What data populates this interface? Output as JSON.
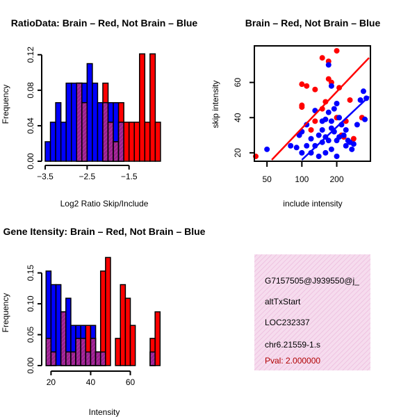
{
  "colors": {
    "red": "#ff0000",
    "blue": "#0000ff",
    "purple": "#9a2090",
    "overlay": "#f6dcee",
    "hatch": "#ecbadc",
    "pval": "#b00000"
  },
  "chart_data": [
    {
      "id": "ratio",
      "type": "bar",
      "title": "RatioData: Brain – Red, Not Brain – Blue",
      "xlabel": "Log2 Ratio Skip/Include",
      "ylabel": "Frequency",
      "xlim": [
        -3.55,
        -0.55
      ],
      "ylim": [
        0,
        0.13
      ],
      "xticks": [
        -3.5,
        -2.5,
        -1.5
      ],
      "xtick_labels": [
        "−3.5",
        "−2.5",
        "−1.5"
      ],
      "yticks": [
        0,
        0.04,
        0.08,
        0.12
      ],
      "ytick_labels": [
        "0.00",
        "0.04",
        "0.08",
        "0.12"
      ],
      "bin_width": 0.125,
      "bin_starts": [
        -3.5,
        -3.375,
        -3.25,
        -3.125,
        -3.0,
        -2.875,
        -2.75,
        -2.625,
        -2.5,
        -2.375,
        -2.25,
        -2.125,
        -2.0,
        -1.875,
        -1.75,
        -1.625,
        -1.5,
        -1.375,
        -1.25,
        -1.125,
        -1.0,
        -0.875
      ],
      "series": [
        {
          "name": "Not Brain",
          "color": "blue",
          "values": [
            0.022,
            0.044,
            0.066,
            0.044,
            0.088,
            0.088,
            0.088,
            0.088,
            0.11,
            0.088,
            0.066,
            0.066,
            0.066,
            0.066,
            0.044,
            0,
            0,
            0,
            0,
            0,
            0,
            0
          ]
        },
        {
          "name": "Brain",
          "color": "red",
          "values": [
            0,
            0,
            0,
            0,
            0,
            0,
            0.088,
            0.066,
            0,
            0,
            0,
            0.088,
            0.044,
            0.022,
            0.066,
            0.044,
            0.044,
            0.044,
            0.121,
            0.044,
            0.121,
            0.044
          ]
        }
      ]
    },
    {
      "id": "scatter",
      "type": "scatter",
      "title": "Brain – Red, Not Brain – Blue",
      "xlabel": "include intensity",
      "ylabel": "skip intensity",
      "log_x": true,
      "xlim": [
        40,
        380
      ],
      "ylim": [
        16,
        80
      ],
      "xticks": [
        50,
        100,
        200
      ],
      "xtick_labels": [
        "50",
        "100",
        "200"
      ],
      "yticks": [
        20,
        40,
        60
      ],
      "ytick_labels": [
        "20",
        "40",
        "60"
      ],
      "series": [
        {
          "name": "Brain",
          "color": "red",
          "points": [
            [
              40,
              18
            ],
            [
              100,
              59
            ],
            [
              110,
              58
            ],
            [
              100,
              47
            ],
            [
              100,
              46
            ],
            [
              130,
              56
            ],
            [
              150,
              74
            ],
            [
              170,
              72
            ],
            [
              200,
              78
            ],
            [
              170,
              62
            ],
            [
              180,
              60
            ],
            [
              210,
              57
            ],
            [
              160,
              49
            ],
            [
              150,
              45
            ],
            [
              130,
              38
            ],
            [
              260,
              50
            ],
            [
              240,
              38
            ],
            [
              200,
              40
            ],
            [
              120,
              33
            ],
            [
              280,
              28
            ],
            [
              330,
              40
            ],
            [
              220,
              30
            ],
            [
              230,
              29
            ]
          ],
          "fit": {
            "x": [
              55,
              380
            ],
            "y": [
              16,
              74
            ]
          }
        },
        {
          "name": "Not Brain",
          "color": "blue",
          "points": [
            [
              50,
              22
            ],
            [
              80,
              24
            ],
            [
              90,
              23
            ],
            [
              95,
              30
            ],
            [
              100,
              32
            ],
            [
              110,
              36
            ],
            [
              120,
              28
            ],
            [
              130,
              44
            ],
            [
              140,
              30
            ],
            [
              150,
              33
            ],
            [
              160,
              39
            ],
            [
              170,
              43
            ],
            [
              180,
              38
            ],
            [
              170,
              70
            ],
            [
              180,
              58
            ],
            [
              200,
              48
            ],
            [
              190,
              45
            ],
            [
              210,
              40
            ],
            [
              220,
              36
            ],
            [
              230,
              30
            ],
            [
              240,
              33
            ],
            [
              250,
              27
            ],
            [
              260,
              26
            ],
            [
              270,
              22
            ],
            [
              280,
              25
            ],
            [
              300,
              36
            ],
            [
              320,
              50
            ],
            [
              340,
              55
            ],
            [
              350,
              39
            ],
            [
              360,
              51
            ],
            [
              150,
              26
            ],
            [
              160,
              20
            ],
            [
              180,
              22
            ],
            [
              120,
              20
            ],
            [
              140,
              18
            ],
            [
              110,
              24
            ],
            [
              100,
              20
            ],
            [
              200,
              27
            ],
            [
              160,
              29
            ],
            [
              190,
              32
            ],
            [
              150,
              38
            ],
            [
              130,
              24
            ],
            [
              170,
              27
            ],
            [
              210,
              29
            ],
            [
              240,
              24
            ],
            [
              180,
              34
            ],
            [
              200,
              18
            ]
          ],
          "fit": {
            "x": [
              100,
              380
            ],
            "y": [
              16,
              52
            ]
          }
        }
      ]
    },
    {
      "id": "intensity",
      "type": "bar",
      "title": "Gene Itensity: Brain – Red, Not Brain – Blue",
      "xlabel": "Intensity",
      "ylabel": "Frequency",
      "xlim": [
        16,
        77
      ],
      "ylim": [
        0,
        0.18
      ],
      "xticks": [
        20,
        40,
        60
      ],
      "xtick_labels": [
        "20",
        "40",
        "60"
      ],
      "yticks": [
        0,
        0.05,
        0.1,
        0.15
      ],
      "ytick_labels": [
        "0.00",
        "0.05",
        "0.10",
        "0.15"
      ],
      "bin_width": 2.5,
      "bin_starts": [
        17.5,
        20,
        22.5,
        25,
        27.5,
        30,
        32.5,
        35,
        37.5,
        40,
        42.5,
        45,
        47.5,
        50,
        52.5,
        55,
        57.5,
        60,
        62.5,
        65,
        67.5,
        70,
        72.5
      ],
      "series": [
        {
          "name": "Not Brain",
          "color": "blue",
          "values": [
            0.153,
            0.131,
            0.131,
            0.087,
            0.109,
            0.065,
            0.065,
            0.065,
            0.022,
            0.065,
            0.022,
            0.022,
            0,
            0,
            0,
            0,
            0,
            0,
            0,
            0,
            0,
            0.022,
            0
          ]
        },
        {
          "name": "Brain",
          "color": "red",
          "values": [
            0.044,
            0.022,
            0,
            0.087,
            0.022,
            0.022,
            0.044,
            0.044,
            0.065,
            0.044,
            0.022,
            0.153,
            0.175,
            0,
            0.044,
            0.131,
            0.109,
            0.065,
            0,
            0,
            0,
            0.044,
            0.087
          ]
        }
      ]
    }
  ],
  "info_box": {
    "lines": [
      "G7157505@J939550@j_",
      "altTxStart",
      "LOC232337",
      "chr6.21559-1.s"
    ],
    "pval": "Pval: 2.000000"
  }
}
